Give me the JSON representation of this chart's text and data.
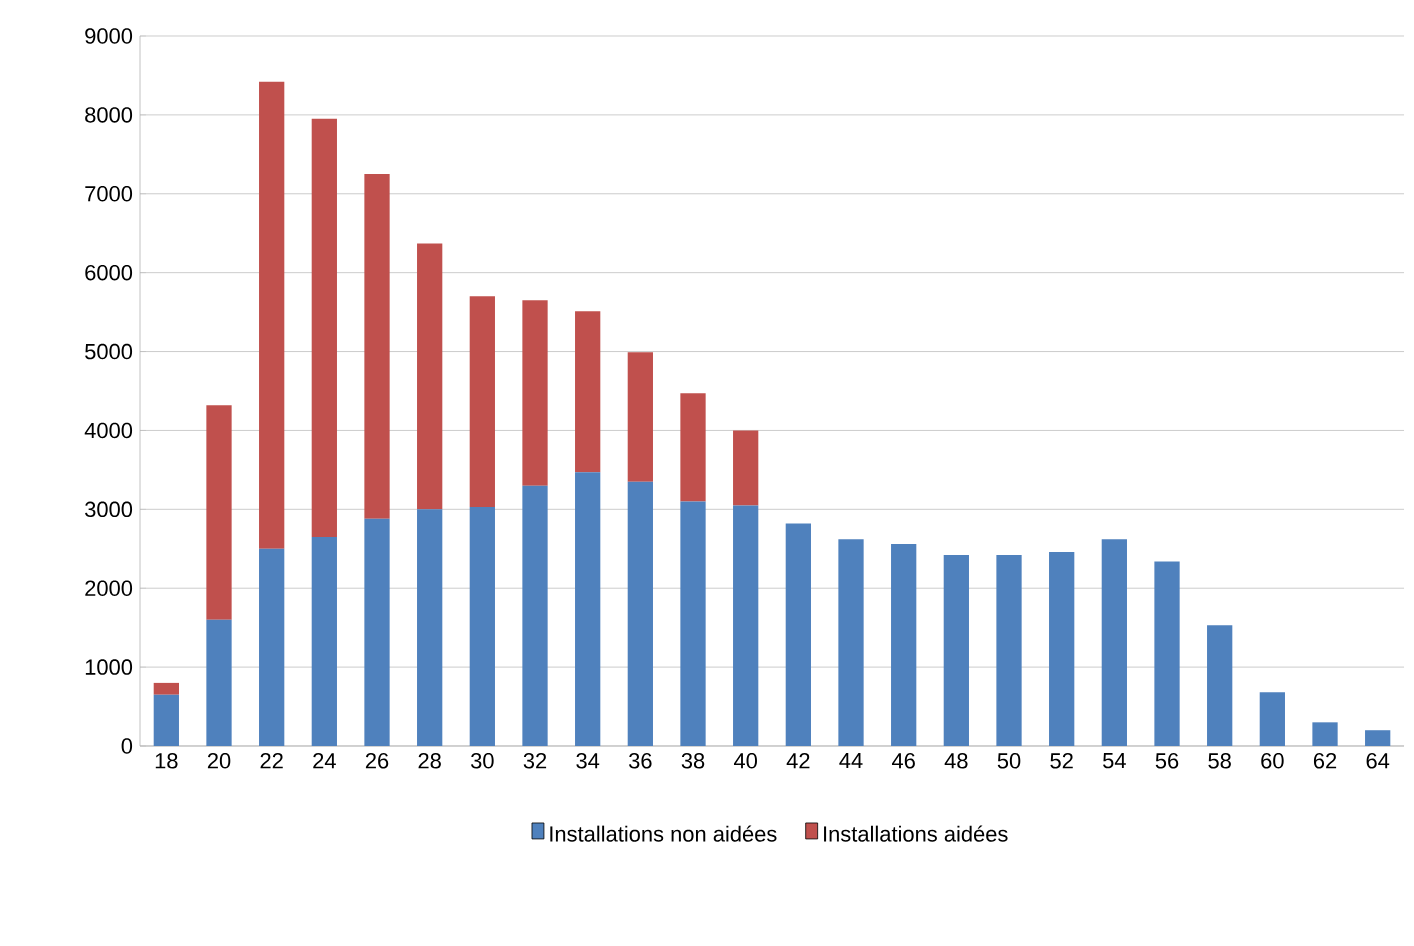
{
  "chart_data": {
    "type": "bar",
    "stacked": true,
    "categories": [
      "18",
      "20",
      "22",
      "24",
      "26",
      "28",
      "30",
      "32",
      "34",
      "36",
      "38",
      "40",
      "42",
      "44",
      "46",
      "48",
      "50",
      "52",
      "54",
      "56",
      "58",
      "60",
      "62",
      "64"
    ],
    "series": [
      {
        "name": "Installations non aidées",
        "color": "#4f81bd",
        "values": [
          650,
          1600,
          2500,
          2650,
          2880,
          3000,
          3030,
          3300,
          3470,
          3350,
          3100,
          3050,
          2820,
          2620,
          2560,
          2420,
          2420,
          2460,
          2620,
          2340,
          1530,
          680,
          300,
          200
        ]
      },
      {
        "name": "Installations aidées",
        "color": "#c0504d",
        "values": [
          150,
          2720,
          5920,
          5300,
          4370,
          3370,
          2670,
          2350,
          2040,
          1640,
          1370,
          950,
          null,
          null,
          null,
          null,
          null,
          null,
          null,
          null,
          null,
          null,
          null,
          null
        ]
      }
    ],
    "ylim": [
      0,
      9000
    ],
    "yticks": [
      0,
      1000,
      2000,
      3000,
      4000,
      5000,
      6000,
      7000,
      8000,
      9000
    ],
    "grid": "y",
    "legend": "bottom"
  }
}
